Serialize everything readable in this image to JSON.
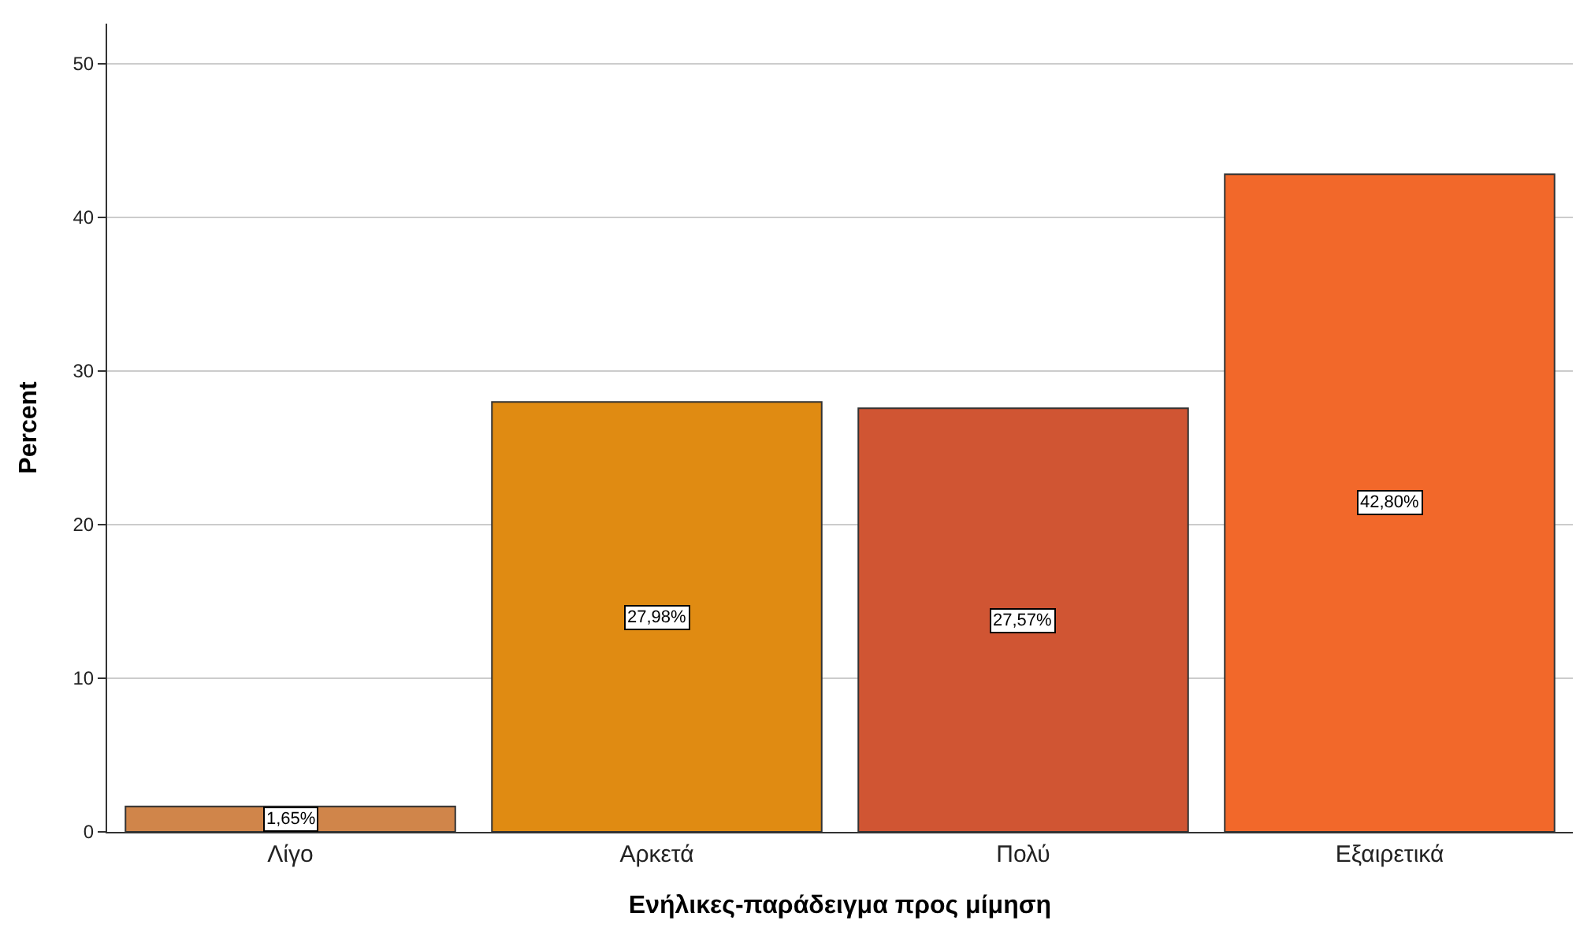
{
  "chart_data": {
    "type": "bar",
    "xlabel": "Ενήλικες-παράδειγμα προς μίμηση",
    "ylabel": "Percent",
    "categories": [
      "Λίγο",
      "Αρκετά",
      "Πολύ",
      "Εξαιρετικά"
    ],
    "values": [
      1.65,
      27.98,
      27.57,
      42.8
    ],
    "colors": [
      "#d0854a",
      "#e08b12",
      "#d05533",
      "#f2682a"
    ],
    "value_labels": [
      "1,65%",
      "27,98%",
      "27,57%",
      "42,80%"
    ],
    "ylim": [
      0,
      52.6
    ],
    "yticks": [
      0,
      10,
      20,
      30,
      40,
      50
    ],
    "grid": "y",
    "legend": false
  }
}
